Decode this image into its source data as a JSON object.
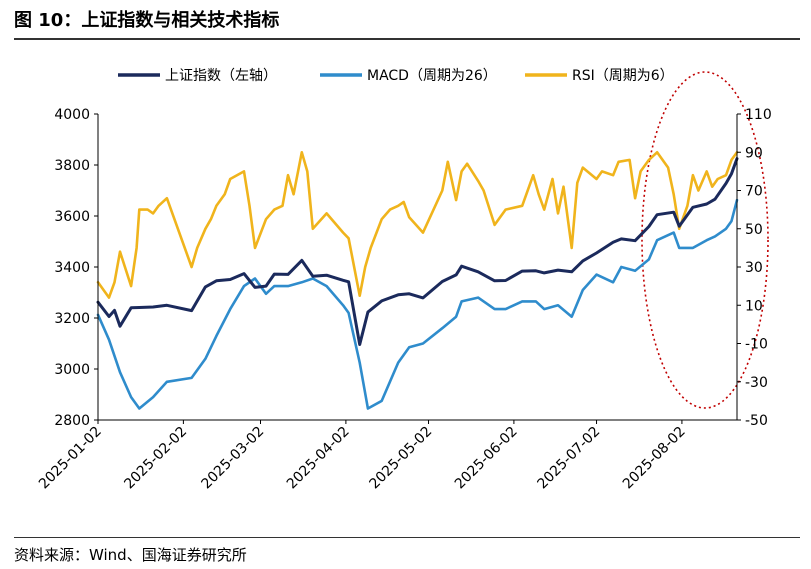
{
  "figure": {
    "title": "图 10：上证指数与相关技术指标",
    "source": "资料来源：Wind、国海证券研究所"
  },
  "chart_data": {
    "type": "line",
    "title": "",
    "xlabel": "",
    "ylabel_left": "",
    "ylabel_right": "",
    "x_ticks": [
      "2025-01-02",
      "2025-02-02",
      "2025-03-02",
      "2025-04-02",
      "2025-05-02",
      "2025-06-02",
      "2025-07-02",
      "2025-08-02"
    ],
    "y_left": {
      "min": 2800,
      "max": 4000,
      "ticks": [
        2800,
        3000,
        3200,
        3400,
        3600,
        3800,
        4000
      ]
    },
    "y_right": {
      "min": -50,
      "max": 110,
      "ticks": [
        -50,
        -30,
        -10,
        10,
        30,
        50,
        70,
        90,
        110
      ]
    },
    "legend_position": "top",
    "grid": false,
    "x_range": [
      "2025-01-02",
      "2025-08-22"
    ],
    "series": [
      {
        "name": "上证指数（左轴）",
        "axis": "left",
        "color": "#1b2a5c",
        "points": [
          [
            "2025-01-02",
            3262
          ],
          [
            "2025-01-06",
            3206
          ],
          [
            "2025-01-08",
            3230
          ],
          [
            "2025-01-10",
            3168
          ],
          [
            "2025-01-14",
            3240
          ],
          [
            "2025-01-17",
            3241
          ],
          [
            "2025-01-22",
            3243
          ],
          [
            "2025-01-27",
            3250
          ],
          [
            "2025-02-05",
            3229
          ],
          [
            "2025-02-10",
            3322
          ],
          [
            "2025-02-14",
            3346
          ],
          [
            "2025-02-19",
            3351
          ],
          [
            "2025-02-24",
            3374
          ],
          [
            "2025-02-28",
            3320
          ],
          [
            "2025-03-04",
            3325
          ],
          [
            "2025-03-07",
            3372
          ],
          [
            "2025-03-12",
            3371
          ],
          [
            "2025-03-17",
            3426
          ],
          [
            "2025-03-21",
            3364
          ],
          [
            "2025-03-26",
            3368
          ],
          [
            "2025-04-01",
            3348
          ],
          [
            "2025-04-03",
            3342
          ],
          [
            "2025-04-07",
            3096
          ],
          [
            "2025-04-10",
            3223
          ],
          [
            "2025-04-15",
            3267
          ],
          [
            "2025-04-21",
            3291
          ],
          [
            "2025-04-25",
            3295
          ],
          [
            "2025-04-30",
            3279
          ],
          [
            "2025-05-07",
            3343
          ],
          [
            "2025-05-12",
            3369
          ],
          [
            "2025-05-14",
            3403
          ],
          [
            "2025-05-20",
            3381
          ],
          [
            "2025-05-26",
            3346
          ],
          [
            "2025-05-30",
            3347
          ],
          [
            "2025-06-05",
            3384
          ],
          [
            "2025-06-10",
            3385
          ],
          [
            "2025-06-13",
            3377
          ],
          [
            "2025-06-18",
            3388
          ],
          [
            "2025-06-23",
            3381
          ],
          [
            "2025-06-27",
            3424
          ],
          [
            "2025-07-02",
            3455
          ],
          [
            "2025-07-08",
            3497
          ],
          [
            "2025-07-11",
            3510
          ],
          [
            "2025-07-16",
            3503
          ],
          [
            "2025-07-21",
            3559
          ],
          [
            "2025-07-24",
            3605
          ],
          [
            "2025-07-30",
            3615
          ],
          [
            "2025-08-01",
            3560
          ],
          [
            "2025-08-06",
            3634
          ],
          [
            "2025-08-11",
            3647
          ],
          [
            "2025-08-14",
            3666
          ],
          [
            "2025-08-18",
            3728
          ],
          [
            "2025-08-20",
            3766
          ],
          [
            "2025-08-22",
            3825
          ]
        ]
      },
      {
        "name": "MACD（周期为26）",
        "axis": "right",
        "color": "#2f8ccc",
        "points": [
          [
            "2025-01-02",
            5
          ],
          [
            "2025-01-06",
            -8
          ],
          [
            "2025-01-10",
            -25
          ],
          [
            "2025-01-14",
            -38
          ],
          [
            "2025-01-17",
            -44
          ],
          [
            "2025-01-22",
            -38
          ],
          [
            "2025-01-27",
            -30
          ],
          [
            "2025-02-05",
            -28
          ],
          [
            "2025-02-10",
            -18
          ],
          [
            "2025-02-14",
            -6
          ],
          [
            "2025-02-19",
            8
          ],
          [
            "2025-02-24",
            20
          ],
          [
            "2025-02-28",
            24
          ],
          [
            "2025-03-04",
            16
          ],
          [
            "2025-03-07",
            20
          ],
          [
            "2025-03-12",
            20
          ],
          [
            "2025-03-17",
            22
          ],
          [
            "2025-03-21",
            24
          ],
          [
            "2025-03-26",
            20
          ],
          [
            "2025-04-01",
            10
          ],
          [
            "2025-04-03",
            6
          ],
          [
            "2025-04-07",
            -20
          ],
          [
            "2025-04-10",
            -44
          ],
          [
            "2025-04-15",
            -40
          ],
          [
            "2025-04-21",
            -20
          ],
          [
            "2025-04-25",
            -12
          ],
          [
            "2025-04-30",
            -10
          ],
          [
            "2025-05-07",
            -2
          ],
          [
            "2025-05-12",
            4
          ],
          [
            "2025-05-14",
            12
          ],
          [
            "2025-05-20",
            14
          ],
          [
            "2025-05-26",
            8
          ],
          [
            "2025-05-30",
            8
          ],
          [
            "2025-06-05",
            12
          ],
          [
            "2025-06-10",
            12
          ],
          [
            "2025-06-13",
            8
          ],
          [
            "2025-06-18",
            10
          ],
          [
            "2025-06-23",
            4
          ],
          [
            "2025-06-27",
            18
          ],
          [
            "2025-07-02",
            26
          ],
          [
            "2025-07-08",
            22
          ],
          [
            "2025-07-11",
            30
          ],
          [
            "2025-07-16",
            28
          ],
          [
            "2025-07-21",
            34
          ],
          [
            "2025-07-24",
            44
          ],
          [
            "2025-07-30",
            48
          ],
          [
            "2025-08-01",
            40
          ],
          [
            "2025-08-06",
            40
          ],
          [
            "2025-08-11",
            44
          ],
          [
            "2025-08-14",
            46
          ],
          [
            "2025-08-18",
            50
          ],
          [
            "2025-08-20",
            54
          ],
          [
            "2025-08-22",
            65
          ]
        ]
      },
      {
        "name": "RSI（周期为6）",
        "axis": "right",
        "color": "#f0b41c",
        "points": [
          [
            "2025-01-02",
            22
          ],
          [
            "2025-01-06",
            14
          ],
          [
            "2025-01-08",
            22
          ],
          [
            "2025-01-10",
            38
          ],
          [
            "2025-01-14",
            20
          ],
          [
            "2025-01-16",
            40
          ],
          [
            "2025-01-17",
            60
          ],
          [
            "2025-01-20",
            60
          ],
          [
            "2025-01-22",
            58
          ],
          [
            "2025-01-24",
            62
          ],
          [
            "2025-01-27",
            66
          ],
          [
            "2025-02-05",
            30
          ],
          [
            "2025-02-07",
            40
          ],
          [
            "2025-02-10",
            50
          ],
          [
            "2025-02-12",
            55
          ],
          [
            "2025-02-14",
            62
          ],
          [
            "2025-02-17",
            68
          ],
          [
            "2025-02-19",
            76
          ],
          [
            "2025-02-24",
            80
          ],
          [
            "2025-02-26",
            62
          ],
          [
            "2025-02-28",
            40
          ],
          [
            "2025-03-04",
            55
          ],
          [
            "2025-03-07",
            60
          ],
          [
            "2025-03-10",
            62
          ],
          [
            "2025-03-12",
            78
          ],
          [
            "2025-03-14",
            68
          ],
          [
            "2025-03-17",
            90
          ],
          [
            "2025-03-19",
            80
          ],
          [
            "2025-03-21",
            50
          ],
          [
            "2025-03-26",
            58
          ],
          [
            "2025-04-01",
            48
          ],
          [
            "2025-04-03",
            45
          ],
          [
            "2025-04-07",
            15
          ],
          [
            "2025-04-09",
            30
          ],
          [
            "2025-04-11",
            40
          ],
          [
            "2025-04-15",
            55
          ],
          [
            "2025-04-18",
            60
          ],
          [
            "2025-04-21",
            62
          ],
          [
            "2025-04-23",
            64
          ],
          [
            "2025-04-25",
            56
          ],
          [
            "2025-04-30",
            48
          ],
          [
            "2025-05-07",
            70
          ],
          [
            "2025-05-09",
            85
          ],
          [
            "2025-05-12",
            65
          ],
          [
            "2025-05-14",
            80
          ],
          [
            "2025-05-16",
            84
          ],
          [
            "2025-05-20",
            75
          ],
          [
            "2025-05-22",
            70
          ],
          [
            "2025-05-26",
            52
          ],
          [
            "2025-05-30",
            60
          ],
          [
            "2025-06-05",
            62
          ],
          [
            "2025-06-09",
            78
          ],
          [
            "2025-06-11",
            68
          ],
          [
            "2025-06-13",
            60
          ],
          [
            "2025-06-16",
            76
          ],
          [
            "2025-06-18",
            58
          ],
          [
            "2025-06-20",
            72
          ],
          [
            "2025-06-23",
            40
          ],
          [
            "2025-06-25",
            74
          ],
          [
            "2025-06-27",
            82
          ],
          [
            "2025-07-02",
            76
          ],
          [
            "2025-07-04",
            80
          ],
          [
            "2025-07-08",
            78
          ],
          [
            "2025-07-10",
            85
          ],
          [
            "2025-07-14",
            86
          ],
          [
            "2025-07-16",
            66
          ],
          [
            "2025-07-18",
            80
          ],
          [
            "2025-07-21",
            86
          ],
          [
            "2025-07-24",
            90
          ],
          [
            "2025-07-28",
            82
          ],
          [
            "2025-07-30",
            68
          ],
          [
            "2025-08-01",
            50
          ],
          [
            "2025-08-04",
            62
          ],
          [
            "2025-08-06",
            78
          ],
          [
            "2025-08-08",
            70
          ],
          [
            "2025-08-11",
            80
          ],
          [
            "2025-08-13",
            72
          ],
          [
            "2025-08-15",
            76
          ],
          [
            "2025-08-18",
            78
          ],
          [
            "2025-08-20",
            86
          ],
          [
            "2025-08-22",
            90
          ]
        ]
      }
    ]
  }
}
